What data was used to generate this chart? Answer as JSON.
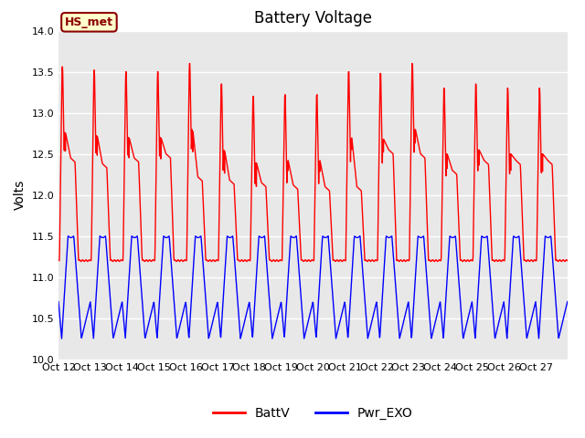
{
  "title": "Battery Voltage",
  "ylabel": "Volts",
  "ylim": [
    10.0,
    14.0
  ],
  "yticks": [
    10.0,
    10.5,
    11.0,
    11.5,
    12.0,
    12.5,
    13.0,
    13.5,
    14.0
  ],
  "xtick_labels": [
    "Oct 12",
    "Oct 13",
    "Oct 14",
    "Oct 15",
    "Oct 16",
    "Oct 17",
    "Oct 18",
    "Oct 19",
    "Oct 20",
    "Oct 21",
    "Oct 22",
    "Oct 23",
    "Oct 24",
    "Oct 25",
    "Oct 26",
    "Oct 27"
  ],
  "legend_label1": "BattV",
  "legend_label2": "Pwr_EXO",
  "line1_color": "red",
  "line2_color": "blue",
  "annotation_text": "HS_met",
  "bg_color": "#e8e8e8",
  "title_fontsize": 12,
  "label_fontsize": 10,
  "tick_fontsize": 8,
  "n_days": 16,
  "batt_peaks": [
    13.56,
    13.52,
    13.5,
    13.5,
    13.6,
    13.35,
    13.2,
    13.22,
    13.22,
    13.5,
    13.48,
    13.6,
    13.3,
    13.35,
    13.3,
    13.3
  ],
  "batt_baseline": 11.2,
  "batt_mid": [
    12.45,
    12.38,
    12.45,
    12.5,
    12.22,
    12.18,
    12.15,
    12.12,
    12.1,
    12.1,
    12.55,
    12.5,
    12.3,
    12.42,
    12.42,
    12.42
  ],
  "blue_max": 11.5,
  "blue_min": 10.25
}
